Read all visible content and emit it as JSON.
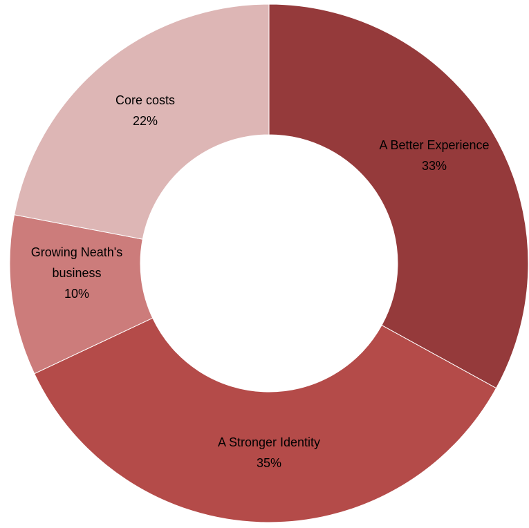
{
  "chart_data": {
    "type": "pie",
    "variant": "donut",
    "title": "",
    "slices": [
      {
        "label": "A Better Experience",
        "value": 33,
        "value_label": "33%",
        "color": "#953A3B",
        "label_lines": [
          "A Better Experience"
        ]
      },
      {
        "label": "A Stronger Identity",
        "value": 35,
        "value_label": "35%",
        "color": "#B44B49",
        "label_lines": [
          "A Stronger Identity"
        ]
      },
      {
        "label": "Growing Neath's business",
        "value": 10,
        "value_label": "10%",
        "color": "#CC7C7B",
        "label_lines": [
          "Growing Neath's",
          "business"
        ]
      },
      {
        "label": "Core costs",
        "value": 22,
        "value_label": "22%",
        "color": "#DDB6B5",
        "label_lines": [
          "Core costs"
        ]
      }
    ],
    "start_angle_deg": 0,
    "direction": "clockwise",
    "legend": "none",
    "data_labels": "category name and percentage"
  }
}
